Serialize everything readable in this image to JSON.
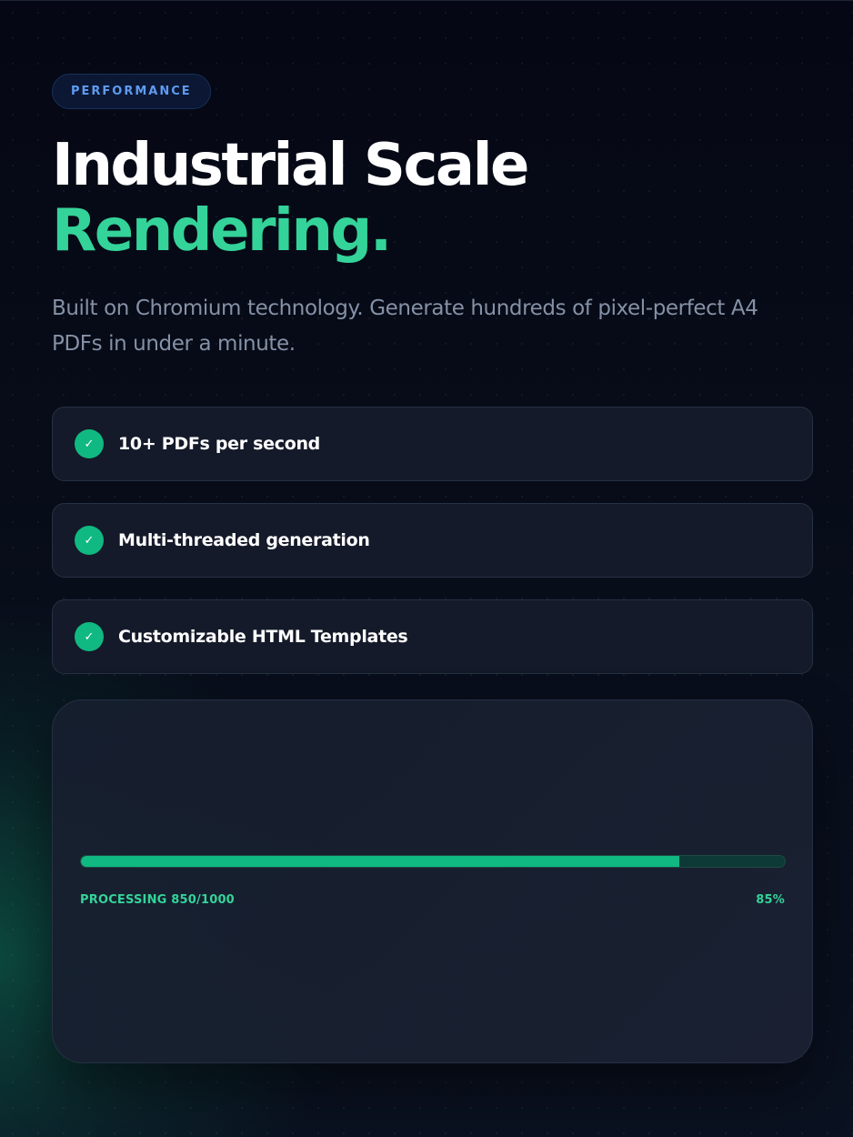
{
  "hero": {
    "badge": "PERFORMANCE",
    "title_line1": "Industrial Scale",
    "title_line2": "Rendering.",
    "subtitle": "Built on Chromium technology. Generate hundreds of pixel-perfect A4 PDFs in under a minute."
  },
  "features": [
    {
      "icon": "check-icon",
      "label": "10+ PDFs per second"
    },
    {
      "icon": "check-icon",
      "label": "Multi-threaded generation"
    },
    {
      "icon": "check-icon",
      "label": "Customizable HTML Templates"
    }
  ],
  "progress": {
    "status": "PROCESSING 850/1000",
    "percent_label": "85%",
    "fraction": 0.85
  },
  "colors": {
    "accent": "#34d399",
    "check": "#10b981",
    "badge_text": "#5f9bf0",
    "background": "#070b16"
  }
}
